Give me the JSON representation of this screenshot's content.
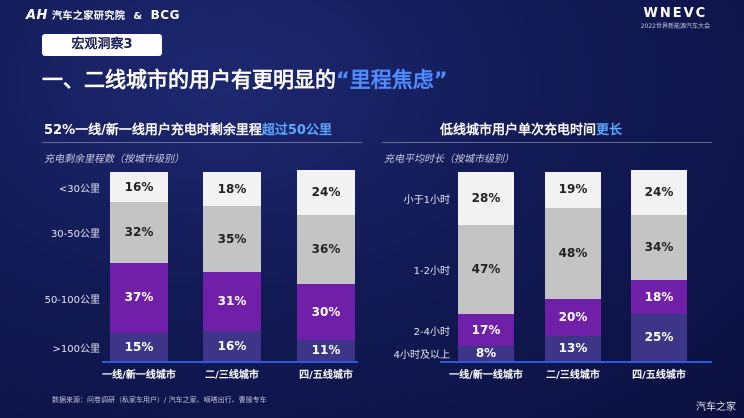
{
  "header": {
    "logo_left": "汽车之家研究院",
    "logo_left_mark": "AH",
    "ampersand": "&",
    "logo_bcg": "BCG",
    "logo_right": "WNEVC",
    "logo_right_sub": "2022世界新能源汽车大会"
  },
  "section_tag": "宏观洞察3",
  "headline": {
    "prefix": "一、二线城市的用户有更明显的",
    "highlight": "“里程焦虑”"
  },
  "colors": {
    "white_seg": "#f2f2f2",
    "gray_seg": "#c4c4c4",
    "purple_seg": "#7020a8",
    "navy_seg": "#3e3488",
    "accent_blue": "#4f8cff"
  },
  "left": {
    "subtitle_pre": "52%一线/新一线用户充电时剩余里程",
    "subtitle_blue": "超过50公里",
    "unit": "充电剩余里程数（按城市级别）"
  },
  "right": {
    "subtitle_pre": "低线城市用户单次充电时间",
    "subtitle_blue": "更长",
    "unit": "充电平均时长（按城市级别）"
  },
  "chart_data": [
    {
      "type": "bar",
      "stacked": true,
      "title": "充电剩余里程数（按城市级别）",
      "categories": [
        "一线/新一线城市",
        "二/三线城市",
        "四/五线城市"
      ],
      "series": [
        {
          "name": ">100公里",
          "values": [
            15,
            16,
            11
          ],
          "labels": [
            "15%",
            "16%",
            "11%"
          ],
          "color": "#3e3488",
          "text": "#ffffff"
        },
        {
          "name": "50-100公里",
          "values": [
            37,
            31,
            30
          ],
          "labels": [
            "37%",
            "31%",
            "30%"
          ],
          "color": "#7020a8",
          "text": "#ffffff"
        },
        {
          "name": "30-50公里",
          "values": [
            32,
            35,
            36
          ],
          "labels": [
            "32%",
            "35%",
            "36%"
          ],
          "color": "#c4c4c4",
          "text": "#222222"
        },
        {
          "name": "<30公里",
          "values": [
            16,
            18,
            24
          ],
          "labels": [
            "16%",
            "18%",
            "24%"
          ],
          "color": "#f2f2f2",
          "text": "#222222"
        }
      ],
      "ylim": [
        0,
        100
      ]
    },
    {
      "type": "bar",
      "stacked": true,
      "title": "充电平均时长（按城市级别）",
      "categories": [
        "一线/新一线城市",
        "二/三线城市",
        "四/五线城市"
      ],
      "series": [
        {
          "name": "4小时及以上",
          "values": [
            8,
            13,
            25
          ],
          "labels": [
            "8%",
            "13%",
            "25%"
          ],
          "color": "#3e3488",
          "text": "#ffffff"
        },
        {
          "name": "2-4小时",
          "values": [
            17,
            20,
            18
          ],
          "labels": [
            "17%",
            "20%",
            "18%"
          ],
          "color": "#7020a8",
          "text": "#ffffff"
        },
        {
          "name": "1-2小时",
          "values": [
            47,
            48,
            34
          ],
          "labels": [
            "47%",
            "48%",
            "34%"
          ],
          "color": "#c4c4c4",
          "text": "#222222"
        },
        {
          "name": "小于1小时",
          "values": [
            28,
            19,
            24
          ],
          "labels": [
            "28%",
            "19%",
            "24%"
          ],
          "color": "#f2f2f2",
          "text": "#222222"
        }
      ],
      "ylim": [
        0,
        100
      ]
    }
  ],
  "footer": {
    "source": "数据来源：问卷调研（私家车用户）/ 汽车之家、嘀嗒出行、曹操专车",
    "brand": "汽车之家"
  }
}
